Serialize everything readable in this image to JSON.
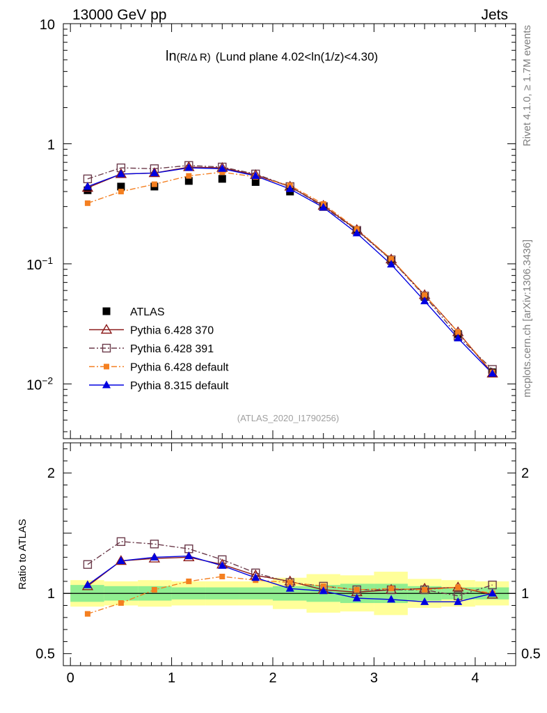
{
  "header": {
    "left": "13000 GeV pp",
    "right": "Jets"
  },
  "side_text": {
    "rivet": "Rivet 4.1.0, ≥ 1.7M events",
    "mcplots": "mcplots.cern.ch [arXiv:1306.3436]"
  },
  "chart_data": [
    {
      "type": "scatter",
      "panel": "main",
      "title": "ln(R/Δ R) (Lund plane 4.02<ln(1/z)<4.30)",
      "title_parts": {
        "fn": "ln",
        "arg": "(R/Δ R)",
        "rest": "(Lund plane 4.02<ln(1/z)<4.30)"
      },
      "watermark": "(ATLAS_2020_I1790256)",
      "yscale": "log",
      "xlim": [
        -0.07,
        4.4
      ],
      "ylim": [
        0.0035,
        10
      ],
      "xlabel": "",
      "ylabel": "",
      "ytick_labels": [
        {
          "base": "10",
          "exp": "",
          "value": 10
        },
        {
          "base": "1",
          "exp": "",
          "value": 1
        },
        {
          "base": "10",
          "exp": "−1",
          "value": 0.1
        },
        {
          "base": "10",
          "exp": "−2",
          "value": 0.01
        }
      ],
      "x": [
        0.17,
        0.5,
        0.83,
        1.17,
        1.5,
        1.83,
        2.17,
        2.5,
        2.83,
        3.17,
        3.5,
        3.83,
        4.17
      ],
      "series": [
        {
          "name": "ATLAS",
          "color": "#000000",
          "marker": "square-filled",
          "line": "none",
          "values": [
            0.41,
            0.44,
            0.44,
            0.49,
            0.51,
            0.48,
            0.4,
            0.3,
            0.19,
            0.106,
            0.053,
            0.026,
            0.0125
          ]
        },
        {
          "name": "Pythia 6.428 370",
          "color": "#8b1a1a",
          "marker": "triangle-open",
          "line": "solid",
          "values": [
            0.43,
            0.56,
            0.57,
            0.64,
            0.63,
            0.55,
            0.44,
            0.305,
            0.192,
            0.109,
            0.055,
            0.027,
            0.0122
          ]
        },
        {
          "name": "Pythia 6.428 391",
          "color": "#6b3a4a",
          "marker": "square-open",
          "line": "dashdot",
          "values": [
            0.51,
            0.63,
            0.62,
            0.66,
            0.64,
            0.56,
            0.44,
            0.3,
            0.19,
            0.108,
            0.054,
            0.025,
            0.0132
          ]
        },
        {
          "name": "Pythia 6.428 default",
          "color": "#f47f20",
          "marker": "square-filled-small",
          "line": "dashdot",
          "values": [
            0.32,
            0.4,
            0.46,
            0.54,
            0.58,
            0.53,
            0.45,
            0.315,
            0.195,
            0.11,
            0.055,
            0.027,
            0.0125
          ]
        },
        {
          "name": "Pythia 8.315 default",
          "color": "#0000e0",
          "marker": "triangle-filled",
          "line": "solid",
          "values": [
            0.44,
            0.56,
            0.57,
            0.63,
            0.62,
            0.54,
            0.42,
            0.295,
            0.18,
            0.099,
            0.049,
            0.024,
            0.0122
          ]
        }
      ]
    },
    {
      "type": "scatter",
      "panel": "ratio",
      "ylabel": "Ratio to ATLAS",
      "ylim": [
        0.4,
        2.25
      ],
      "xlim": [
        -0.07,
        4.4
      ],
      "ytick_labels": [
        {
          "label": "2",
          "value": 2
        },
        {
          "label": "1",
          "value": 1
        },
        {
          "label": "0.5",
          "value": 0.5
        }
      ],
      "xtick_labels": [
        "0",
        "1",
        "2",
        "3",
        "4"
      ],
      "x": [
        0.17,
        0.5,
        0.83,
        1.17,
        1.5,
        1.83,
        2.17,
        2.5,
        2.83,
        3.17,
        3.5,
        3.83,
        4.17
      ],
      "bands": {
        "stat_color": "#90ee90",
        "total_color": "#ffff99",
        "stat": [
          0.07,
          0.06,
          0.06,
          0.05,
          0.05,
          0.05,
          0.06,
          0.07,
          0.08,
          0.08,
          0.06,
          0.05,
          0.05
        ],
        "total": [
          0.11,
          0.1,
          0.11,
          0.1,
          0.1,
          0.1,
          0.13,
          0.16,
          0.15,
          0.18,
          0.12,
          0.11,
          0.1
        ]
      },
      "series": [
        {
          "name": "Pythia 6.428 370",
          "color": "#8b1a1a",
          "marker": "triangle-open",
          "line": "solid",
          "values": [
            1.06,
            1.27,
            1.29,
            1.3,
            1.24,
            1.15,
            1.1,
            1.03,
            1.01,
            1.03,
            1.04,
            1.05,
            0.99
          ]
        },
        {
          "name": "Pythia 6.428 391",
          "color": "#6b3a4a",
          "marker": "square-open",
          "line": "dashdot",
          "values": [
            1.24,
            1.43,
            1.41,
            1.37,
            1.28,
            1.17,
            1.09,
            1.06,
            1.03,
            1.03,
            1.03,
            0.98,
            1.07
          ]
        },
        {
          "name": "Pythia 6.428 default",
          "color": "#f47f20",
          "marker": "square-filled-small",
          "line": "dashdot",
          "values": [
            0.83,
            0.92,
            1.03,
            1.1,
            1.14,
            1.11,
            1.09,
            1.06,
            1.03,
            1.04,
            1.03,
            1.05,
            1.0
          ]
        },
        {
          "name": "Pythia 8.315 default",
          "color": "#0000e0",
          "marker": "triangle-filled",
          "line": "solid",
          "values": [
            1.07,
            1.27,
            1.3,
            1.31,
            1.23,
            1.13,
            1.04,
            1.02,
            0.96,
            0.95,
            0.93,
            0.93,
            1.0
          ]
        }
      ]
    }
  ]
}
